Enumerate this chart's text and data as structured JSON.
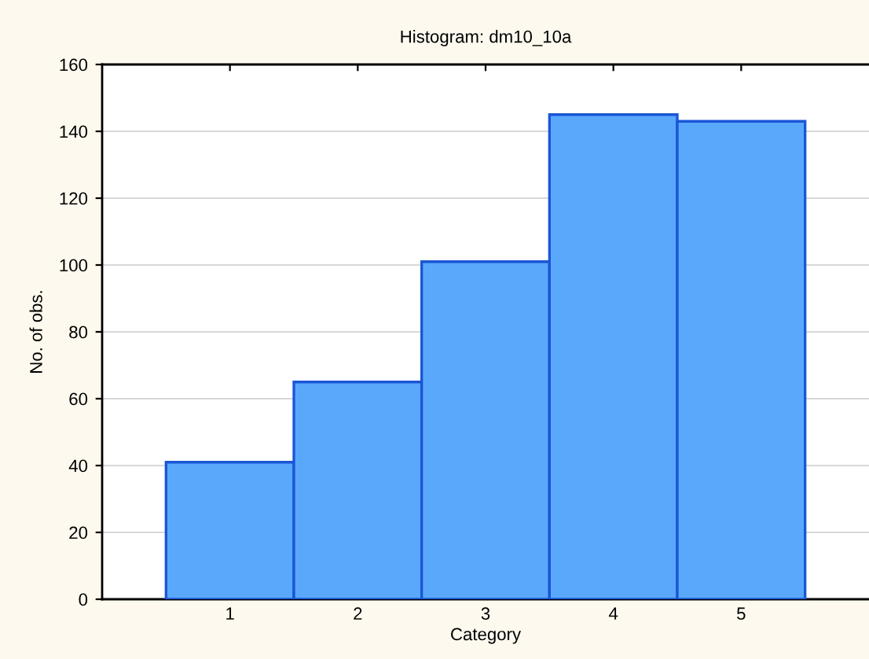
{
  "chart_data": {
    "type": "histogram",
    "title": "Histogram: dm10_10a",
    "xlabel": "Category",
    "ylabel": "No. of obs.",
    "bins": [
      0.5,
      1.5,
      2.5,
      3.5,
      4.5,
      5.5
    ],
    "values": [
      41,
      65,
      101,
      145,
      143
    ],
    "color": "#5aa8fb",
    "xlim": [
      0,
      6
    ],
    "xticks": [
      1,
      2,
      3,
      4,
      5
    ],
    "ylim": [
      0,
      160
    ],
    "yticks": [
      0,
      20,
      40,
      60,
      80,
      100,
      120,
      140,
      160
    ],
    "grid": "y"
  }
}
